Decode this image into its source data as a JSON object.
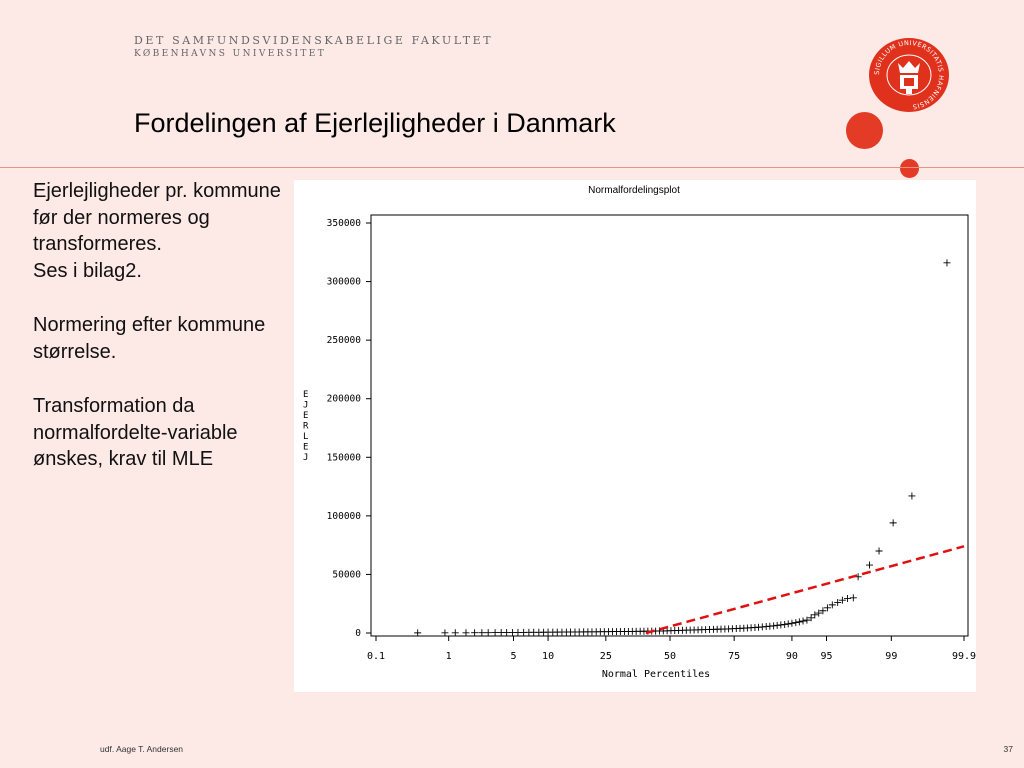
{
  "header": {
    "institution_line1": "DET SAMFUNDSVIDENSKABELIGE FAKULTET",
    "institution_line2": "KØBENHAVNS UNIVERSITET",
    "seal_text": "SIGILLUM UNIVERSITATIS HAFNIENSIS",
    "title": "Fordelingen af Ejerlejligheder i Danmark"
  },
  "bullets": [
    "Ejerlejligheder pr. kommune før der normeres og transformeres.",
    "Ses i bilag2.",
    "Normering efter kommune størrelse.",
    "Transformation da normalfordelte-variable ønskes, krav til MLE"
  ],
  "footer": {
    "author": "udf. Aage T. Andersen",
    "page": "37"
  },
  "colors": {
    "background": "#fde9e6",
    "accent": "#e33b26",
    "rule": "#e69483",
    "ref_line": "#e01010"
  },
  "chart_data": {
    "type": "scatter",
    "title": "Normalfordelingsplot",
    "xlabel": "Normal Percentiles",
    "ylabel": "EJERLEJ",
    "x_ticks": [
      "0.1",
      "1",
      "5",
      "10",
      "25",
      "50",
      "75",
      "90",
      "95",
      "99",
      "99.9"
    ],
    "y_ticks": [
      "0",
      "50000",
      "100000",
      "150000",
      "200000",
      "250000",
      "300000",
      "350000"
    ],
    "x_scale": "normal-probability",
    "x_range": [
      0.1,
      99.9
    ],
    "ylim": [
      0,
      350000
    ],
    "marker": "+",
    "reference_line": {
      "style": "dashed",
      "from": [
        40,
        0
      ],
      "to": [
        99.9,
        74000
      ]
    },
    "points": [
      [
        0.4,
        100
      ],
      [
        0.9,
        150
      ],
      [
        1.2,
        200
      ],
      [
        1.6,
        200
      ],
      [
        2,
        250
      ],
      [
        2.4,
        300
      ],
      [
        2.8,
        300
      ],
      [
        3.3,
        350
      ],
      [
        3.8,
        400
      ],
      [
        4.3,
        400
      ],
      [
        4.9,
        450
      ],
      [
        5.5,
        500
      ],
      [
        6.2,
        500
      ],
      [
        6.9,
        550
      ],
      [
        7.6,
        600
      ],
      [
        8.4,
        600
      ],
      [
        9.2,
        650
      ],
      [
        10,
        700
      ],
      [
        10.9,
        700
      ],
      [
        11.8,
        750
      ],
      [
        12.8,
        800
      ],
      [
        13.8,
        800
      ],
      [
        14.8,
        850
      ],
      [
        15.9,
        900
      ],
      [
        17,
        900
      ],
      [
        18.2,
        950
      ],
      [
        19.4,
        1000
      ],
      [
        20.6,
        1000
      ],
      [
        21.9,
        1050
      ],
      [
        23.2,
        1100
      ],
      [
        24.5,
        1100
      ],
      [
        25.9,
        1150
      ],
      [
        27.3,
        1200
      ],
      [
        28.7,
        1200
      ],
      [
        30.1,
        1250
      ],
      [
        31.6,
        1300
      ],
      [
        33.1,
        1300
      ],
      [
        34.6,
        1350
      ],
      [
        36.1,
        1400
      ],
      [
        37.7,
        1450
      ],
      [
        39.2,
        1500
      ],
      [
        40.8,
        1550
      ],
      [
        42.4,
        1600
      ],
      [
        44,
        1650
      ],
      [
        45.6,
        1700
      ],
      [
        47.2,
        1800
      ],
      [
        48.8,
        1900
      ],
      [
        50.4,
        2000
      ],
      [
        52,
        2100
      ],
      [
        53.6,
        2200
      ],
      [
        55.2,
        2300
      ],
      [
        56.8,
        2400
      ],
      [
        58.4,
        2500
      ],
      [
        60,
        2600
      ],
      [
        61.6,
        2700
      ],
      [
        63.1,
        2800
      ],
      [
        64.6,
        2900
      ],
      [
        66.1,
        3000
      ],
      [
        67.6,
        3100
      ],
      [
        69,
        3200
      ],
      [
        70.4,
        3300
      ],
      [
        71.8,
        3400
      ],
      [
        73.1,
        3500
      ],
      [
        74.4,
        3650
      ],
      [
        75.7,
        3800
      ],
      [
        76.9,
        3950
      ],
      [
        78.1,
        4100
      ],
      [
        79.2,
        4300
      ],
      [
        80.3,
        4500
      ],
      [
        81.4,
        4700
      ],
      [
        82.4,
        4900
      ],
      [
        83.4,
        5200
      ],
      [
        84.4,
        5500
      ],
      [
        85.3,
        5800
      ],
      [
        86.2,
        6100
      ],
      [
        87,
        6500
      ],
      [
        87.8,
        6900
      ],
      [
        88.6,
        7300
      ],
      [
        89.3,
        7800
      ],
      [
        90,
        8300
      ],
      [
        90.7,
        8900
      ],
      [
        91.3,
        9500
      ],
      [
        91.9,
        10200
      ],
      [
        92.5,
        11000
      ],
      [
        93.1,
        13000
      ],
      [
        93.6,
        15500
      ],
      [
        94.1,
        17000
      ],
      [
        94.6,
        19000
      ],
      [
        95.1,
        21500
      ],
      [
        95.6,
        24000
      ],
      [
        96.1,
        26000
      ],
      [
        96.5,
        28000
      ],
      [
        96.9,
        29500
      ],
      [
        97.3,
        30000
      ],
      [
        97.6,
        48000
      ],
      [
        98.2,
        58000
      ],
      [
        98.6,
        70000
      ],
      [
        99.05,
        94000
      ],
      [
        99.45,
        117000
      ],
      [
        99.82,
        316000
      ]
    ]
  }
}
